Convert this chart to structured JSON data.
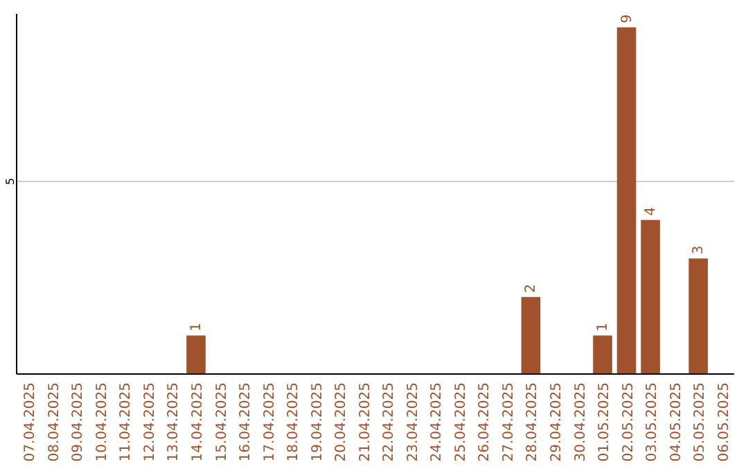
{
  "chart_data": {
    "type": "bar",
    "categories": [
      "07.04.2025",
      "08.04.2025",
      "09.04.2025",
      "10.04.2025",
      "11.04.2025",
      "12.04.2025",
      "13.04.2025",
      "14.04.2025",
      "15.04.2025",
      "16.04.2025",
      "17.04.2025",
      "18.04.2025",
      "19.04.2025",
      "20.04.2025",
      "21.04.2025",
      "22.04.2025",
      "23.04.2025",
      "24.04.2025",
      "25.04.2025",
      "26.04.2025",
      "27.04.2025",
      "28.04.2025",
      "29.04.2025",
      "30.04.2025",
      "01.05.2025",
      "02.05.2025",
      "03.05.2025",
      "04.05.2025",
      "05.05.2025",
      "06.05.2025"
    ],
    "values": [
      0,
      0,
      0,
      0,
      0,
      0,
      0,
      1,
      0,
      0,
      0,
      0,
      0,
      0,
      0,
      0,
      0,
      0,
      0,
      0,
      0,
      2,
      0,
      0,
      1,
      9,
      4,
      0,
      3,
      0
    ],
    "value_labels": [
      null,
      null,
      null,
      null,
      null,
      null,
      null,
      "1",
      null,
      null,
      null,
      null,
      null,
      null,
      null,
      null,
      null,
      null,
      null,
      null,
      null,
      "2",
      null,
      null,
      "1",
      "9",
      "4",
      null,
      "3",
      null
    ],
    "color": "#a0522d",
    "ylim": [
      0,
      9.35
    ],
    "yticks": [
      5
    ],
    "grid": "y"
  }
}
